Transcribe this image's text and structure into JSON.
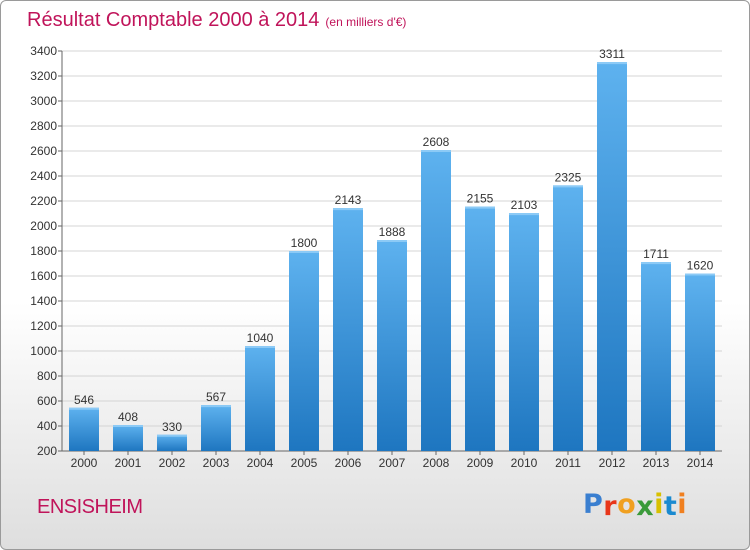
{
  "header": {
    "title": "Résultat Comptable 2000 à 2014",
    "subtitle": "(en milliers d'€)"
  },
  "footer": {
    "commune": "ENSISHEIM",
    "logo_text": "Proxiti",
    "logo_colors": [
      "#3a7fd0",
      "#e8361a",
      "#f0a020",
      "#3a9a3a",
      "#d8c000",
      "#1a8ad0",
      "#f08020"
    ]
  },
  "colors": {
    "bar_light": "#5eb2ef",
    "bar_dark": "#1e76c0",
    "title": "#c0145a",
    "grid": "#d4d4d4"
  },
  "chart_data": {
    "type": "bar",
    "categories": [
      "2000",
      "2001",
      "2002",
      "2003",
      "2004",
      "2005",
      "2006",
      "2007",
      "2008",
      "2009",
      "2010",
      "2011",
      "2012",
      "2013",
      "2014"
    ],
    "values": [
      546,
      408,
      330,
      567,
      1040,
      1800,
      2143,
      1888,
      2608,
      2155,
      2103,
      2325,
      3311,
      1711,
      1620
    ],
    "ylim": [
      200,
      3400
    ],
    "yticks": [
      200,
      400,
      600,
      800,
      1000,
      1200,
      1400,
      1600,
      1800,
      2000,
      2200,
      2400,
      2600,
      2800,
      3000,
      3200,
      3400
    ],
    "grid": true,
    "data_labels": true
  }
}
